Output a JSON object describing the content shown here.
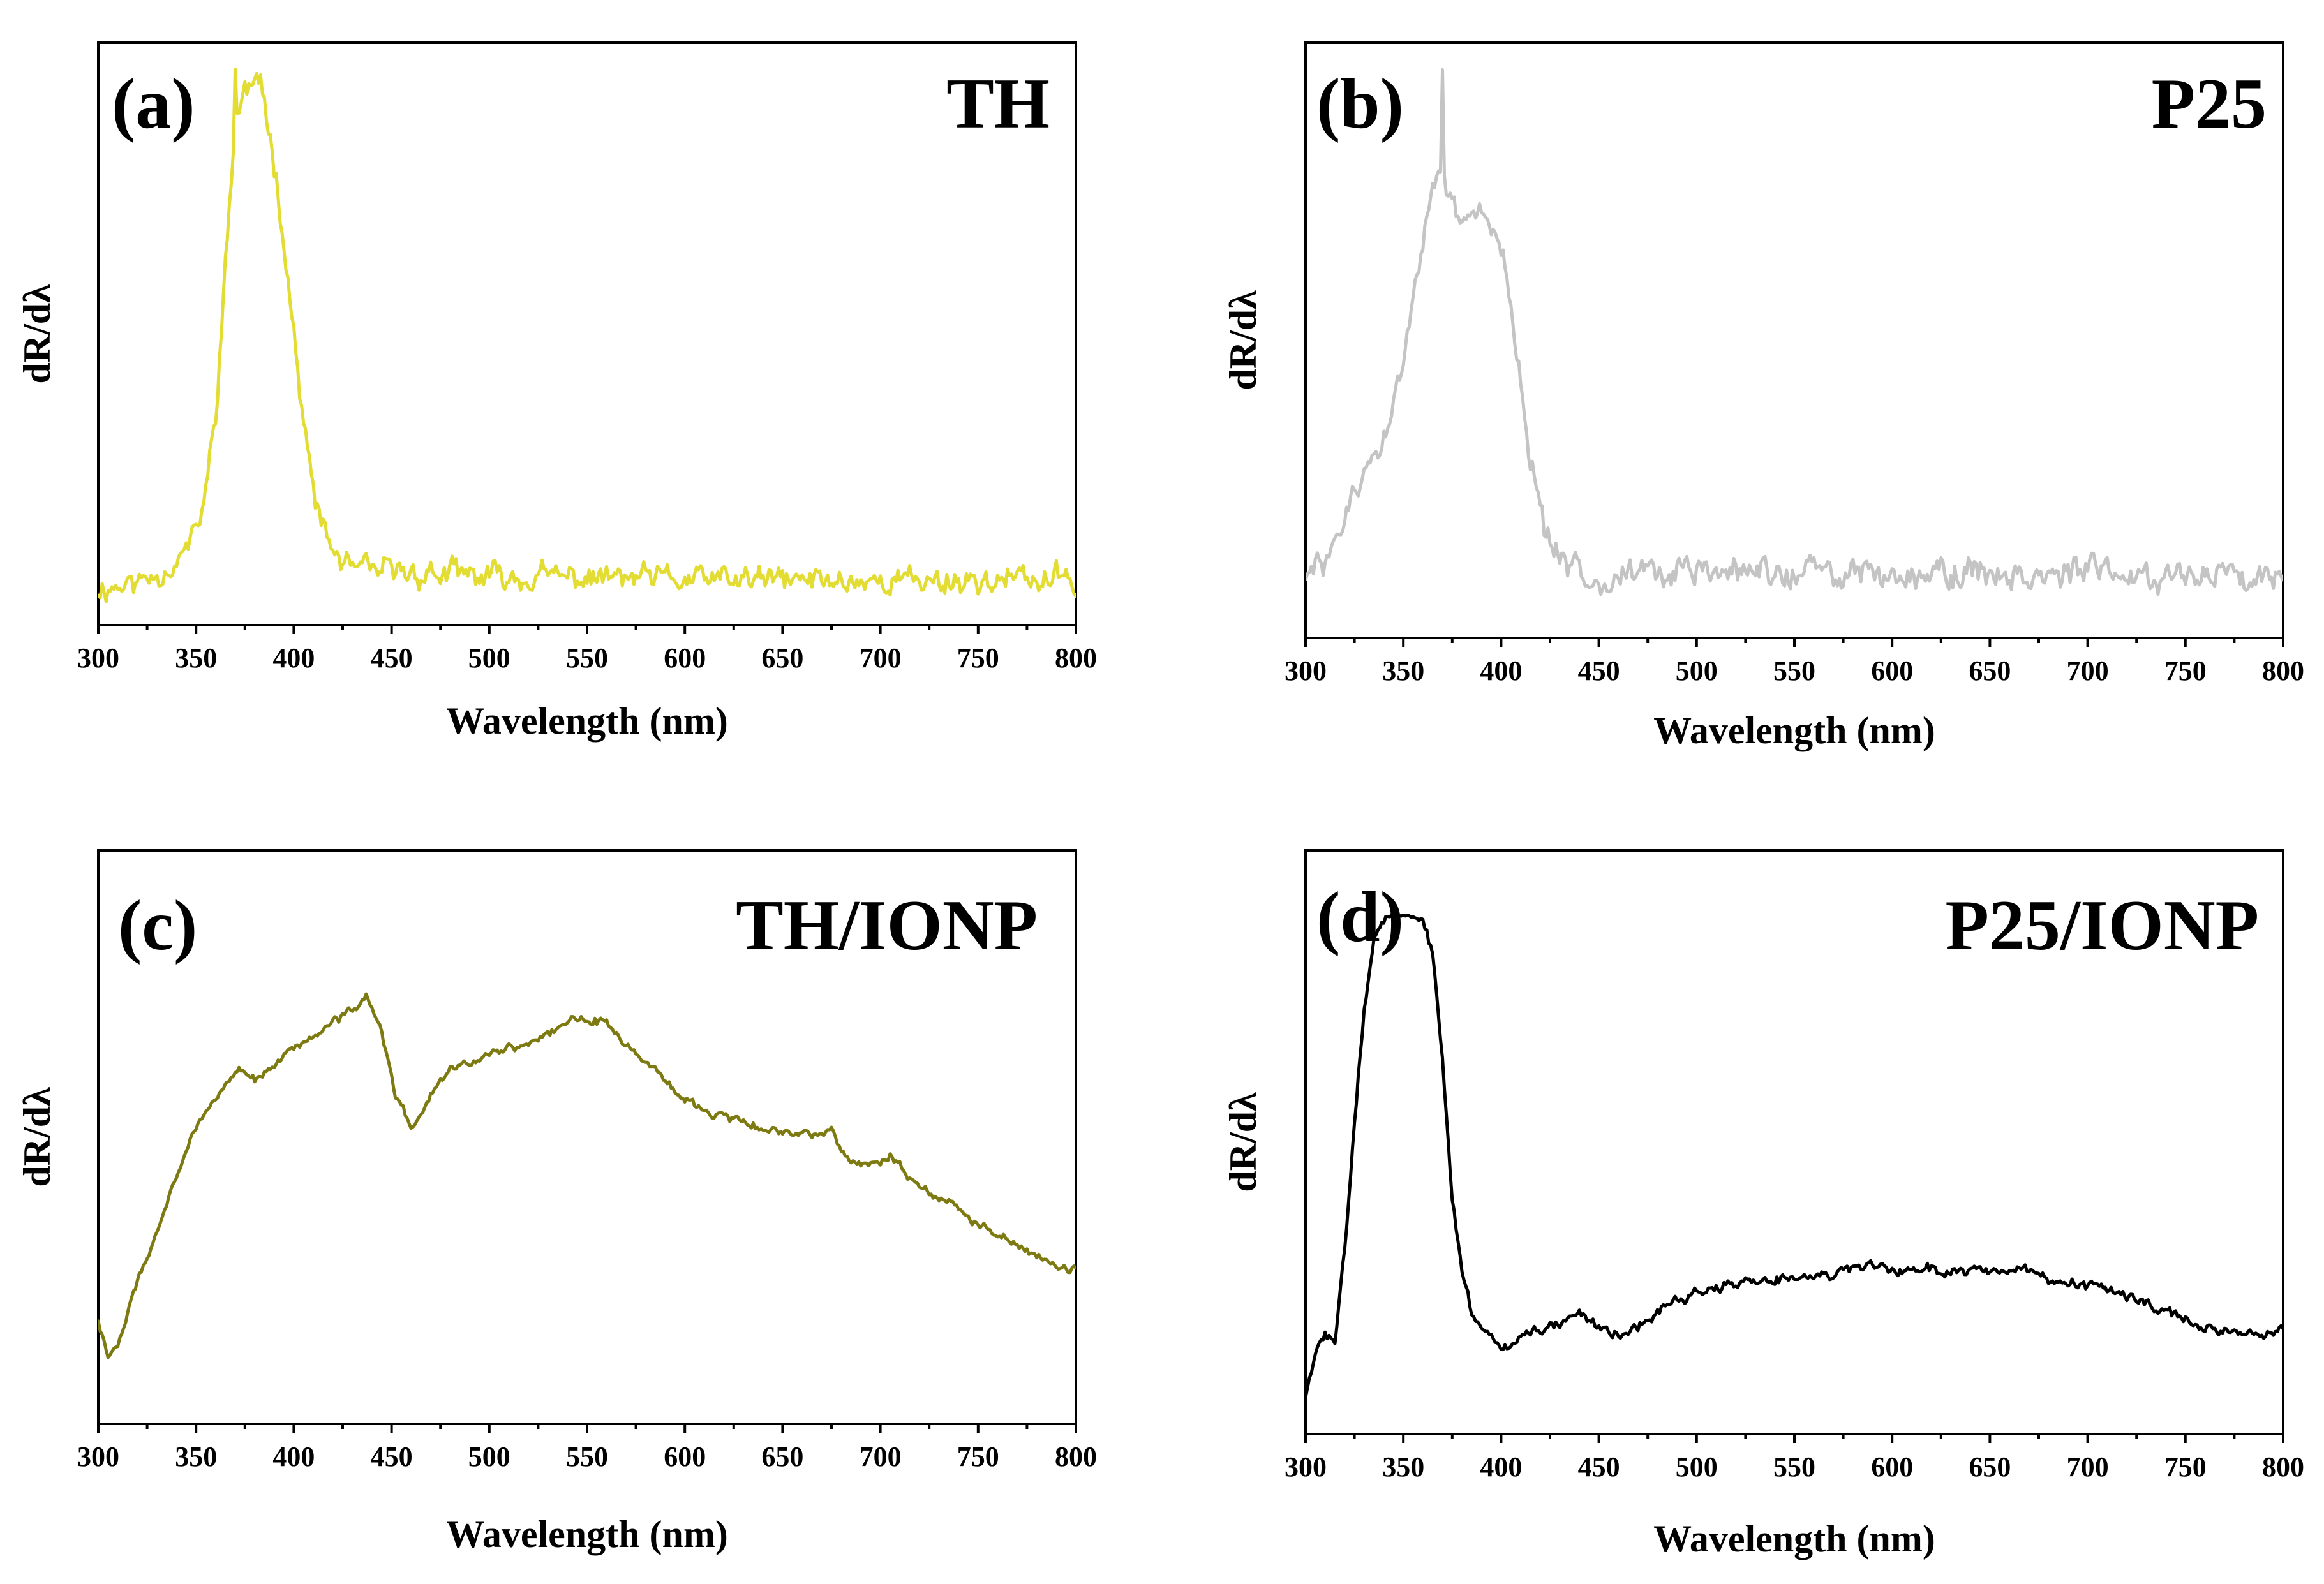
{
  "figure": {
    "panel_count": 4
  },
  "chart_data": [
    {
      "type": "line",
      "panel": "(a)",
      "sample": "TH",
      "color": "#e3dc33",
      "xlabel": "Wavelength (nm)",
      "ylabel": "dR/dλ",
      "xlim": [
        300,
        800
      ],
      "ylim": [
        -0.05,
        1.05
      ],
      "xticks": [
        "300",
        "350",
        "400",
        "450",
        "500",
        "550",
        "600",
        "650",
        "700",
        "750",
        "800"
      ],
      "yticks_shown": false,
      "noise": 0.018,
      "seed": 11,
      "spikes": [
        {
          "x": 370,
          "y": 1.0
        }
      ],
      "series": [
        {
          "name": "TH",
          "x": [
            300,
            320,
            340,
            350,
            355,
            360,
            365,
            370,
            375,
            380,
            385,
            390,
            395,
            400,
            405,
            410,
            415,
            420,
            425,
            430,
            440,
            460,
            500,
            550,
            600,
            650,
            700,
            750,
            800
          ],
          "y": [
            0.02,
            0.03,
            0.07,
            0.12,
            0.2,
            0.35,
            0.62,
            0.9,
            0.96,
            0.97,
            0.94,
            0.83,
            0.68,
            0.5,
            0.33,
            0.2,
            0.13,
            0.09,
            0.07,
            0.05,
            0.05,
            0.05,
            0.04,
            0.04,
            0.035,
            0.035,
            0.035,
            0.035,
            0.035
          ]
        }
      ]
    },
    {
      "type": "line",
      "panel": "(b)",
      "sample": "P25",
      "color": "#c4c4c4",
      "xlabel": "Wavelength (nm)",
      "ylabel": "dR/dλ",
      "xlim": [
        300,
        800
      ],
      "ylim": [
        -0.05,
        1.05
      ],
      "xticks": [
        "300",
        "350",
        "400",
        "450",
        "500",
        "550",
        "600",
        "650",
        "700",
        "750",
        "800"
      ],
      "yticks_shown": false,
      "noise": 0.02,
      "seed": 29,
      "spikes": [
        {
          "x": 370,
          "y": 1.0
        }
      ],
      "series": [
        {
          "name": "P25",
          "x": [
            300,
            310,
            320,
            330,
            340,
            345,
            350,
            355,
            360,
            365,
            370,
            375,
            380,
            385,
            390,
            395,
            400,
            405,
            410,
            415,
            420,
            425,
            430,
            440,
            500,
            600,
            700,
            800
          ],
          "y": [
            0.06,
            0.09,
            0.17,
            0.25,
            0.32,
            0.38,
            0.46,
            0.58,
            0.7,
            0.8,
            0.78,
            0.74,
            0.71,
            0.72,
            0.74,
            0.73,
            0.68,
            0.57,
            0.4,
            0.28,
            0.18,
            0.12,
            0.08,
            0.07,
            0.07,
            0.07,
            0.07,
            0.07
          ]
        }
      ]
    },
    {
      "type": "line",
      "panel": "(c)",
      "sample": "TH/IONP",
      "color": "#7d7a12",
      "xlabel": "Wavelength (nm)",
      "ylabel": "dR/dλ",
      "xlim": [
        300,
        800
      ],
      "ylim": [
        -0.05,
        1.05
      ],
      "xticks": [
        "300",
        "350",
        "400",
        "450",
        "500",
        "550",
        "600",
        "650",
        "700",
        "750",
        "800"
      ],
      "yticks_shown": false,
      "noise": 0.006,
      "seed": 47,
      "spikes": [],
      "series": [
        {
          "name": "TH/IONP",
          "x": [
            300,
            305,
            310,
            320,
            330,
            340,
            350,
            360,
            370,
            380,
            390,
            400,
            410,
            420,
            430,
            437,
            445,
            452,
            460,
            465,
            470,
            480,
            500,
            520,
            540,
            550,
            560,
            570,
            580,
            600,
            620,
            640,
            660,
            675,
            680,
            690,
            700,
            705,
            720,
            740,
            760,
            775,
            785,
            790,
            800
          ],
          "y": [
            0.15,
            0.08,
            0.1,
            0.22,
            0.32,
            0.42,
            0.52,
            0.58,
            0.63,
            0.61,
            0.64,
            0.67,
            0.69,
            0.72,
            0.74,
            0.77,
            0.7,
            0.58,
            0.52,
            0.54,
            0.58,
            0.63,
            0.66,
            0.68,
            0.72,
            0.73,
            0.72,
            0.68,
            0.64,
            0.57,
            0.54,
            0.52,
            0.5,
            0.52,
            0.47,
            0.45,
            0.45,
            0.46,
            0.41,
            0.36,
            0.31,
            0.28,
            0.27,
            0.25,
            0.25
          ]
        }
      ]
    },
    {
      "type": "line",
      "panel": "(d)",
      "sample": "P25/IONP",
      "color": "#000000",
      "xlabel": "Wavelength (nm)",
      "ylabel": "dR/dλ",
      "xlim": [
        300,
        800
      ],
      "ylim": [
        -0.05,
        1.05
      ],
      "xticks": [
        "300",
        "350",
        "400",
        "450",
        "500",
        "550",
        "600",
        "650",
        "700",
        "750",
        "800"
      ],
      "yticks_shown": false,
      "noise": 0.007,
      "seed": 83,
      "spikes": [],
      "series": [
        {
          "name": "P25/IONP",
          "x": [
            300,
            305,
            310,
            315,
            320,
            325,
            330,
            335,
            340,
            345,
            350,
            355,
            360,
            365,
            370,
            375,
            380,
            385,
            390,
            395,
            400,
            405,
            410,
            420,
            430,
            440,
            450,
            460,
            470,
            480,
            500,
            520,
            540,
            560,
            580,
            600,
            620,
            640,
            660,
            670,
            680,
            690,
            700,
            720,
            740,
            760,
            780,
            790,
            800
          ],
          "y": [
            0.02,
            0.1,
            0.14,
            0.12,
            0.3,
            0.55,
            0.75,
            0.88,
            0.92,
            0.93,
            0.92,
            0.92,
            0.92,
            0.85,
            0.65,
            0.4,
            0.25,
            0.18,
            0.15,
            0.14,
            0.11,
            0.12,
            0.14,
            0.15,
            0.16,
            0.18,
            0.15,
            0.14,
            0.15,
            0.18,
            0.22,
            0.23,
            0.24,
            0.25,
            0.26,
            0.26,
            0.26,
            0.26,
            0.26,
            0.26,
            0.23,
            0.23,
            0.23,
            0.21,
            0.18,
            0.15,
            0.14,
            0.14,
            0.15
          ]
        }
      ]
    }
  ]
}
